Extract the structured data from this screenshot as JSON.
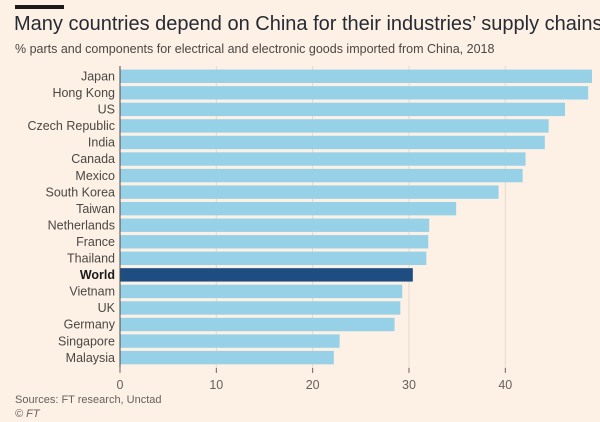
{
  "title": "Many countries depend on China for their industries’ supply chains",
  "subtitle": "% parts and components for electrical and electronic goods imported from China, 2018",
  "sources": "Sources: FT research, Unctad",
  "credit": "© FT",
  "colors": {
    "bar": "#97d1e8",
    "highlight": "#1e4d82",
    "background": "#fdf1e6",
    "axis": "#66605c",
    "grid": "#e6d9ce"
  },
  "chart_data": {
    "type": "bar",
    "orientation": "horizontal",
    "title": "Many countries depend on China for their industries’ supply chains",
    "subtitle": "% parts and components for electrical and electronic goods imported from China, 2018",
    "categories": [
      "Japan",
      "Hong Kong",
      "US",
      "Czech Republic",
      "India",
      "Canada",
      "Mexico",
      "South Korea",
      "Taiwan",
      "Netherlands",
      "France",
      "Thailand",
      "World",
      "Vietnam",
      "UK",
      "Germany",
      "Singapore",
      "Malaysia"
    ],
    "values": [
      49,
      48.6,
      46.2,
      44.5,
      44.1,
      42.1,
      41.8,
      39.3,
      34.9,
      32.1,
      32,
      31.8,
      30.4,
      29.3,
      29.1,
      28.5,
      22.8,
      22.2
    ],
    "highlight": "World",
    "xlim": [
      0,
      49
    ],
    "xticks": [
      0,
      10,
      20,
      30,
      40
    ],
    "xlabel": "",
    "ylabel": "",
    "grid": true
  }
}
